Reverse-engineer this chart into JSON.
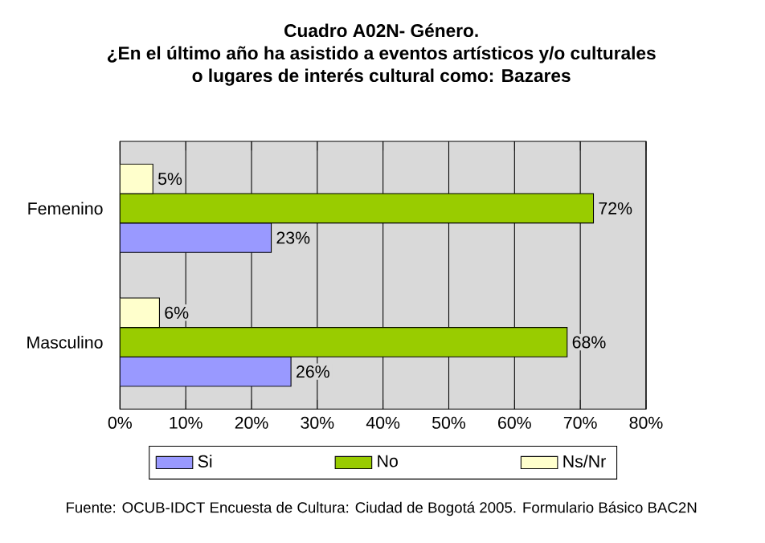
{
  "chart_data": {
    "type": "bar",
    "orientation": "horizontal",
    "title": "Cuadro A02N- Género.\n¿En el último año ha asistido a eventos artísticos y/o culturales\no lugares de interés cultural como: Bazares",
    "categories": [
      "Femenino",
      "Masculino"
    ],
    "series": [
      {
        "name": "Si",
        "color": "#9999ff",
        "values": [
          23,
          26
        ],
        "value_labels": [
          "23%",
          "26%"
        ]
      },
      {
        "name": "No",
        "color": "#99cc00",
        "values": [
          72,
          68
        ],
        "value_labels": [
          "72%",
          "68%"
        ]
      },
      {
        "name": "Ns/Nr",
        "color": "#ffffcc",
        "values": [
          5,
          6
        ],
        "value_labels": [
          "5%",
          "6%"
        ]
      }
    ],
    "xlim": [
      0,
      80
    ],
    "xticks": [
      {
        "value": 0,
        "label": "0%"
      },
      {
        "value": 10,
        "label": "10%"
      },
      {
        "value": 20,
        "label": "20%"
      },
      {
        "value": 30,
        "label": "30%"
      },
      {
        "value": 40,
        "label": "40%"
      },
      {
        "value": 50,
        "label": "50%"
      },
      {
        "value": 60,
        "label": "60%"
      },
      {
        "value": 70,
        "label": "70%"
      },
      {
        "value": 80,
        "label": "80%"
      }
    ],
    "grid": "x",
    "legend": "bottom",
    "annotations": [
      "Fuente: OCUB-IDCT Encuesta de Cultura: Ciudad de Bogotá 2005. Formulario Básico BAC2N"
    ]
  }
}
